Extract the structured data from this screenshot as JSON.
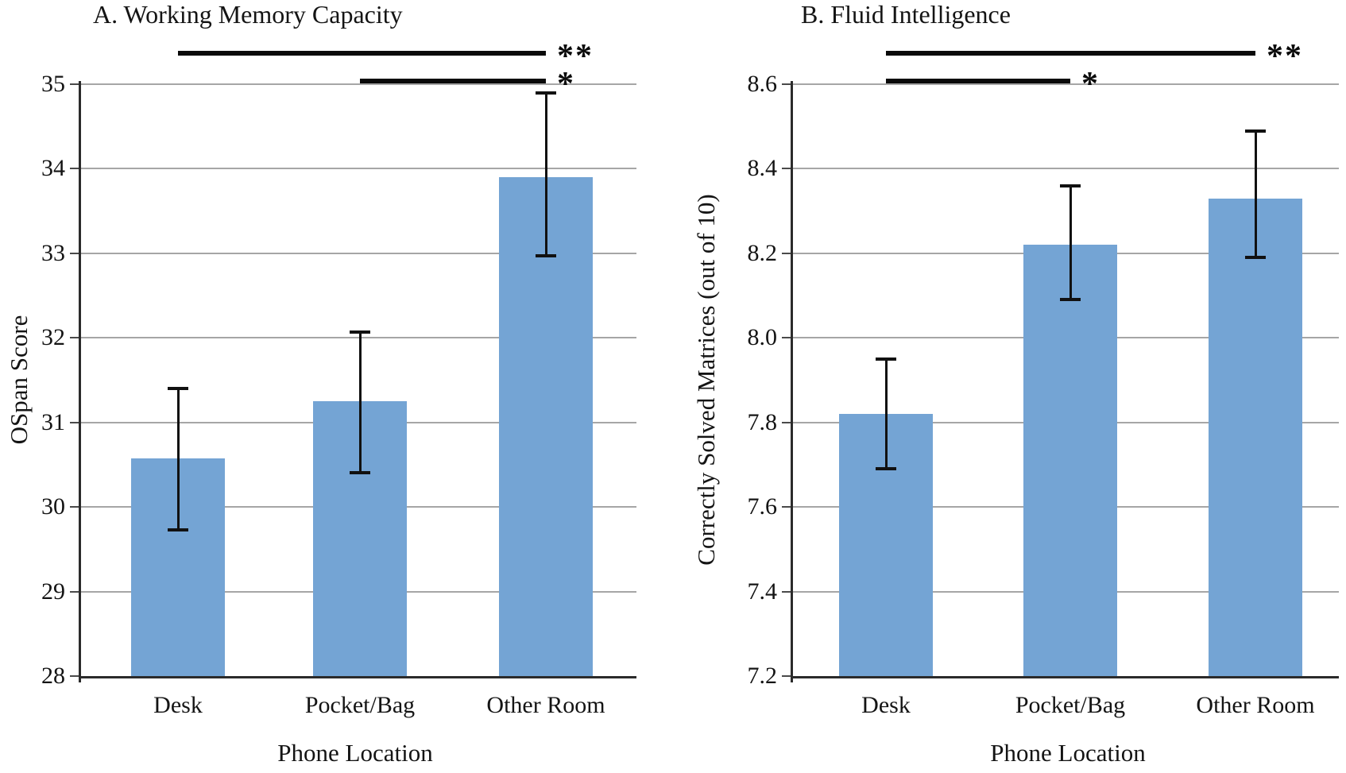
{
  "figure": {
    "background": "#ffffff",
    "bar_color": "#74a4d4",
    "gridline_color": "#a6a6a6",
    "axis_color": "#2b2b2b",
    "tick_color": "#4a4a4a",
    "error_bar_color": "#111111",
    "sig_line_color": "#0a0a0a"
  },
  "chart_data": [
    {
      "id": "panel-a",
      "type": "bar",
      "title": "A. Working Memory Capacity",
      "xlabel": "Phone Location",
      "ylabel": "OSpan Score",
      "categories": [
        "Desk",
        "Pocket/Bag",
        "Other Room"
      ],
      "values": [
        30.57,
        31.25,
        33.9
      ],
      "error_low": [
        29.73,
        30.41,
        32.97
      ],
      "error_high": [
        31.4,
        32.07,
        34.9
      ],
      "ylim": [
        28,
        35
      ],
      "yticks": [
        35,
        34,
        33,
        32,
        31,
        30,
        29,
        28
      ],
      "ytick_labels": [
        "35",
        "34",
        "33",
        "32",
        "31",
        "30",
        "29",
        "28"
      ],
      "grid": true,
      "legend": "none",
      "significance": [
        {
          "from": "Desk",
          "to": "Other Room",
          "label": "**"
        },
        {
          "from": "Pocket/Bag",
          "to": "Other Room",
          "label": "*"
        }
      ]
    },
    {
      "id": "panel-b",
      "type": "bar",
      "title": "B. Fluid Intelligence",
      "xlabel": "Phone Location",
      "ylabel": "Correctly Solved Matrices (out of 10)",
      "categories": [
        "Desk",
        "Pocket/Bag",
        "Other Room"
      ],
      "values": [
        7.82,
        8.22,
        8.33
      ],
      "error_low": [
        7.69,
        8.09,
        8.19
      ],
      "error_high": [
        7.95,
        8.36,
        8.49
      ],
      "ylim": [
        7.2,
        8.6
      ],
      "yticks": [
        8.6,
        8.4,
        8.2,
        8.0,
        7.8,
        7.6,
        7.4,
        7.2
      ],
      "ytick_labels": [
        "8.6",
        "8.4",
        "8.2",
        "8.0",
        "7.8",
        "7.6",
        "7.4",
        "7.2"
      ],
      "grid": true,
      "legend": "none",
      "significance": [
        {
          "from": "Desk",
          "to": "Other Room",
          "label": "**"
        },
        {
          "from": "Desk",
          "to": "Pocket/Bag",
          "label": "*"
        }
      ]
    }
  ]
}
